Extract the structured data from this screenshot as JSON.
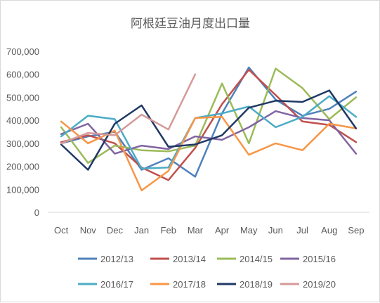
{
  "chart_data": {
    "type": "line",
    "title": "阿根廷豆油月度出口量",
    "xlabel": "",
    "ylabel": "",
    "categories": [
      "Oct",
      "Nov",
      "Dec",
      "Jan",
      "Feb",
      "Mar",
      "Apr",
      "May",
      "Jun",
      "Jul",
      "Aug",
      "Sep"
    ],
    "ylim": [
      0,
      700000
    ],
    "yticks": [
      0,
      100000,
      200000,
      300000,
      400000,
      500000,
      600000,
      700000
    ],
    "ytick_labels": [
      "0",
      "100,000",
      "200,000",
      "300,000",
      "400,000",
      "500,000",
      "600,000",
      "700,000"
    ],
    "grid": false,
    "legend_position": "bottom",
    "series": [
      {
        "name": "2012/13",
        "color": "#4f81bd",
        "values": [
          300000,
          330000,
          350000,
          185000,
          235000,
          155000,
          430000,
          630000,
          490000,
          420000,
          450000,
          525000
        ]
      },
      {
        "name": "2013/14",
        "color": "#c0504d",
        "values": [
          305000,
          335000,
          300000,
          195000,
          140000,
          280000,
          470000,
          620000,
          510000,
          395000,
          380000,
          305000
        ]
      },
      {
        "name": "2014/15",
        "color": "#9bbb59",
        "values": [
          370000,
          215000,
          290000,
          270000,
          265000,
          290000,
          560000,
          300000,
          625000,
          540000,
          405000,
          500000
        ]
      },
      {
        "name": "2015/16",
        "color": "#8064a2",
        "values": [
          340000,
          385000,
          255000,
          290000,
          275000,
          330000,
          315000,
          370000,
          440000,
          410000,
          400000,
          255000
        ]
      },
      {
        "name": "2016/17",
        "color": "#4bacc6",
        "values": [
          330000,
          420000,
          405000,
          190000,
          195000,
          410000,
          430000,
          460000,
          370000,
          415000,
          505000,
          415000
        ]
      },
      {
        "name": "2017/18",
        "color": "#f79646",
        "values": [
          395000,
          300000,
          355000,
          95000,
          180000,
          410000,
          415000,
          250000,
          300000,
          270000,
          385000,
          365000
        ]
      },
      {
        "name": "2018/19",
        "color": "#1f3864",
        "values": [
          295000,
          185000,
          385000,
          465000,
          285000,
          295000,
          335000,
          455000,
          485000,
          480000,
          530000,
          365000
        ]
      },
      {
        "name": "2019/20",
        "color": "#d49a98",
        "values": [
          300000,
          345000,
          335000,
          425000,
          360000,
          600000,
          null,
          null,
          null,
          null,
          null,
          null
        ]
      }
    ]
  }
}
